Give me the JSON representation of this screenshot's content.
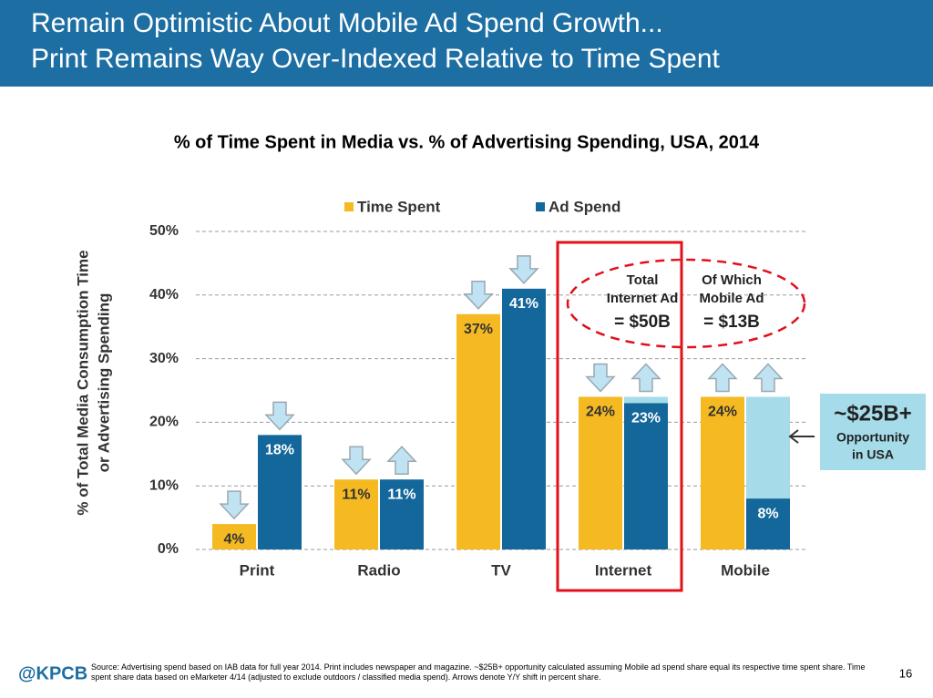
{
  "header": {
    "title_lines": [
      "Remain Optimistic About Mobile Ad Spend Growth...",
      "Print Remains Way Over-Indexed Relative to Time Spent"
    ]
  },
  "chart_data": {
    "type": "bar",
    "title": "% of Time Spent in Media vs. % of Advertising Spending, USA, 2014",
    "y_label_lines": [
      "% of Total Media Consumption Time",
      "or Advertising Spending"
    ],
    "categories": [
      "Print",
      "Radio",
      "TV",
      "Internet",
      "Mobile"
    ],
    "series": [
      {
        "name": "Time Spent",
        "color": "#f5b922",
        "values": [
          4,
          11,
          37,
          24,
          24
        ],
        "value_labels": [
          "4%",
          "11%",
          "37%",
          "24%",
          "24%"
        ],
        "trend": [
          "down",
          "down",
          "down",
          "down",
          "up"
        ]
      },
      {
        "name": "Ad Spend",
        "color": "#13679a",
        "values": [
          18,
          11,
          41,
          23,
          8
        ],
        "value_labels": [
          "18%",
          "11%",
          "41%",
          "23%",
          "8%"
        ],
        "trend": [
          "down",
          "up",
          "down",
          "up",
          "up"
        ]
      }
    ],
    "opportunity": {
      "categories": [
        "Internet",
        "Mobile"
      ],
      "color": "#a6dcea"
    },
    "ylim": [
      0,
      50
    ],
    "yticks": [
      {
        "value": 0,
        "label": "0%"
      },
      {
        "value": 10,
        "label": "10%"
      },
      {
        "value": 20,
        "label": "20%"
      },
      {
        "value": 30,
        "label": "30%"
      },
      {
        "value": 40,
        "label": "40%"
      },
      {
        "value": 50,
        "label": "50%"
      }
    ],
    "grid": true,
    "annotations": {
      "internet_total": [
        "Total",
        "Internet Ad",
        "= $50B"
      ],
      "mobile_total": [
        "Of Which",
        "Mobile Ad",
        "= $13B"
      ],
      "opportunity_box": [
        "~$25B+",
        "Opportunity",
        "in USA"
      ]
    }
  },
  "footer": {
    "brand": "@KPCB",
    "source": "Source: Advertising spend based on IAB data for full year 2014. Print includes newspaper and magazine. ~$25B+ opportunity calculated assuming Mobile ad spend share equal its respective time spent share. Time spent share data based on eMarketer 4/14 (adjusted to exclude outdoors / classified media spend). Arrows denote Y/Y shift in percent share.",
    "page": "16"
  }
}
